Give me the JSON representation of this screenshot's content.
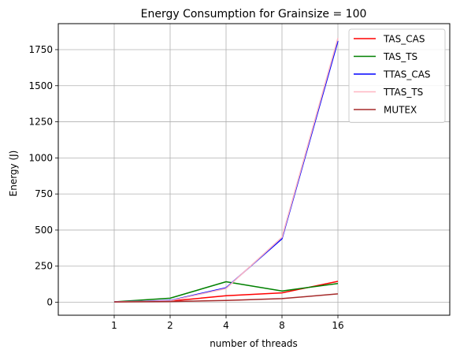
{
  "chart_data": {
    "type": "line",
    "title": "Energy Consumption for Grainsize = 100",
    "xlabel": "number of threads",
    "ylabel": "Energy (J)",
    "categories": [
      "1",
      "2",
      "4",
      "8",
      "16"
    ],
    "x_positions": [
      1,
      2,
      3,
      4,
      5
    ],
    "xlim": [
      0,
      7
    ],
    "ylim": [
      -90,
      1930
    ],
    "yticks": [
      0,
      250,
      500,
      750,
      1000,
      1250,
      1500,
      1750
    ],
    "grid": true,
    "legend_position": "top-right",
    "series": [
      {
        "name": "TAS_CAS",
        "color": "#ff0000",
        "values": [
          3,
          8,
          45,
          65,
          145
        ]
      },
      {
        "name": "TAS_TS",
        "color": "#008000",
        "values": [
          3,
          28,
          142,
          78,
          130
        ]
      },
      {
        "name": "TTAS_CAS",
        "color": "#0000ff",
        "values": [
          3,
          12,
          100,
          440,
          1810
        ]
      },
      {
        "name": "TTAS_TS",
        "color": "#ffb6c1",
        "values": [
          3,
          10,
          95,
          450,
          1830
        ]
      },
      {
        "name": "MUTEX",
        "color": "#a52a2a",
        "values": [
          2,
          5,
          12,
          25,
          58
        ]
      }
    ]
  }
}
